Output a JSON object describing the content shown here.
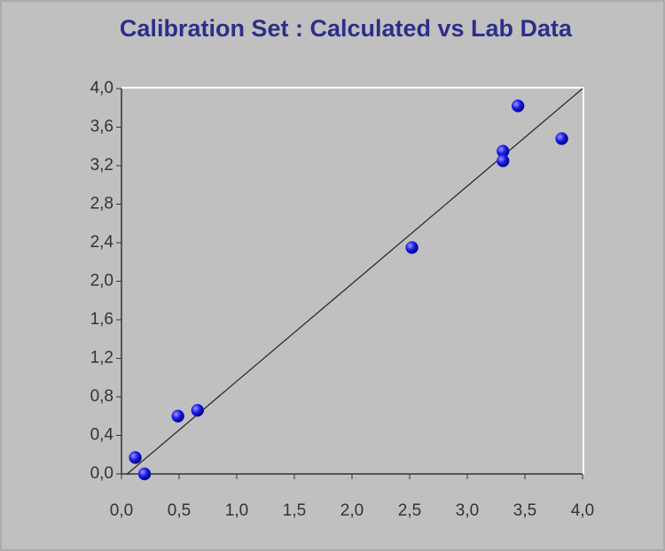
{
  "chart_data": {
    "type": "scatter",
    "title": "Calibration Set : Calculated vs Lab Data",
    "x": [
      0.12,
      0.2,
      0.49,
      0.66,
      2.52,
      3.31,
      3.31,
      3.44,
      3.82
    ],
    "values": [
      0.17,
      0.0,
      0.6,
      0.66,
      2.35,
      3.35,
      3.25,
      3.82,
      3.48
    ],
    "color": "#1a1aee",
    "reference_line": {
      "x": [
        0.05,
        4.0
      ],
      "y": [
        0.0,
        4.0
      ]
    },
    "xlim": [
      0,
      4
    ],
    "ylim": [
      0,
      4
    ],
    "xticks": [
      {
        "value": 0,
        "label": "0,0"
      },
      {
        "value": 0.5,
        "label": "0,5"
      },
      {
        "value": 1,
        "label": "1,0"
      },
      {
        "value": 1.5,
        "label": "1,5"
      },
      {
        "value": 2,
        "label": "2,0"
      },
      {
        "value": 2.5,
        "label": "2,5"
      },
      {
        "value": 3,
        "label": "3,0"
      },
      {
        "value": 3.5,
        "label": "3,5"
      },
      {
        "value": 4,
        "label": "4,0"
      }
    ],
    "yticks": [
      {
        "value": 0,
        "label": "0,0"
      },
      {
        "value": 0.4,
        "label": "0,4"
      },
      {
        "value": 0.8,
        "label": "0,8"
      },
      {
        "value": 1.2,
        "label": "1,2"
      },
      {
        "value": 1.6,
        "label": "1,6"
      },
      {
        "value": 2,
        "label": "2,0"
      },
      {
        "value": 2.4,
        "label": "2,4"
      },
      {
        "value": 2.8,
        "label": "2,8"
      },
      {
        "value": 3.2,
        "label": "3,2"
      },
      {
        "value": 3.6,
        "label": "3,6"
      },
      {
        "value": 4,
        "label": "4,0"
      }
    ]
  }
}
